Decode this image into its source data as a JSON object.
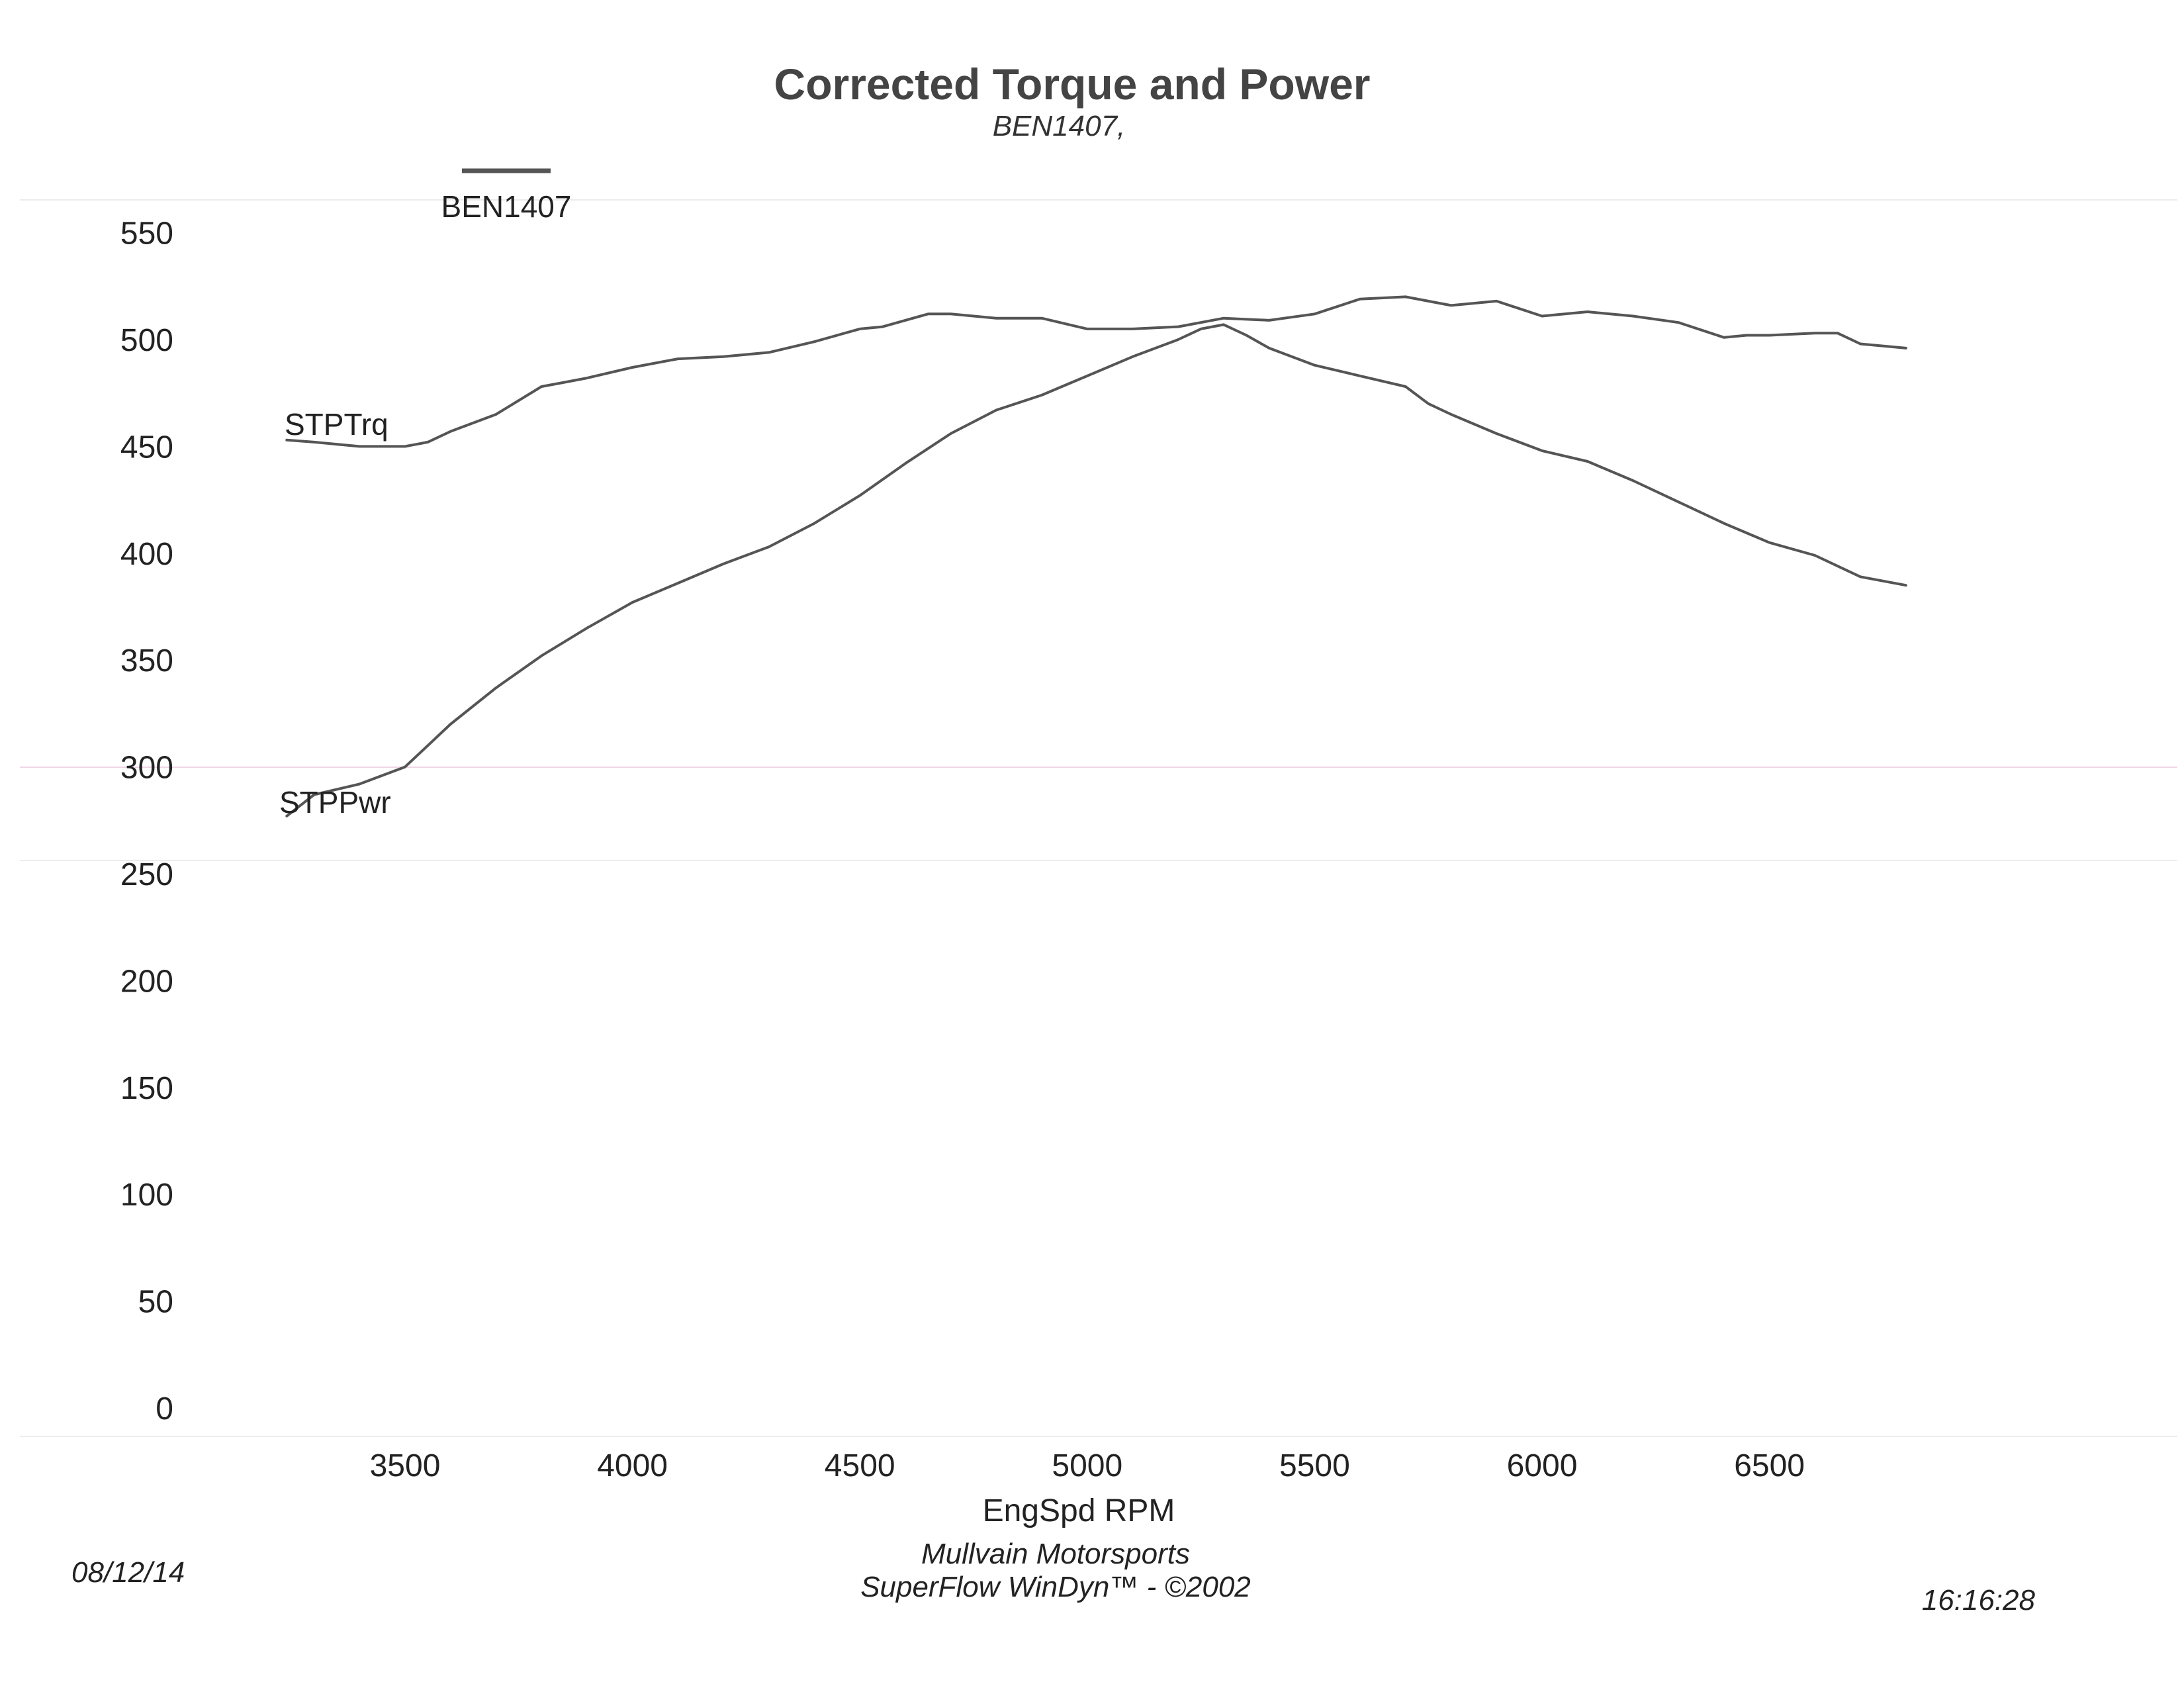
{
  "chart_data": {
    "type": "line",
    "title": "Corrected Torque and Power",
    "subtitle": "BEN1407,",
    "legend": {
      "entries": [
        "BEN1407"
      ],
      "position": "top-left"
    },
    "xlabel": "EngSpd  RPM",
    "ylabel": "",
    "xlim": [
      3200,
      7000
    ],
    "ylim": [
      0,
      550
    ],
    "xticks": [
      3500,
      4000,
      4500,
      5000,
      5500,
      6000,
      6500
    ],
    "yticks": [
      550,
      500,
      450,
      400,
      350,
      300,
      250,
      200,
      150,
      100,
      50,
      0
    ],
    "grid": false,
    "series": [
      {
        "name": "STPTrq",
        "x": [
          3240,
          3300,
          3400,
          3500,
          3550,
          3600,
          3700,
          3800,
          3850,
          3900,
          4000,
          4100,
          4200,
          4300,
          4400,
          4500,
          4550,
          4600,
          4650,
          4700,
          4750,
          4800,
          4900,
          5000,
          5100,
          5200,
          5300,
          5400,
          5500,
          5600,
          5700,
          5750,
          5800,
          5850,
          5900,
          6000,
          6100,
          6200,
          6300,
          6400,
          6450,
          6500,
          6600,
          6650,
          6700,
          6800
        ],
        "y": [
          453,
          452,
          450,
          450,
          452,
          457,
          465,
          478,
          480,
          482,
          487,
          491,
          492,
          494,
          499,
          505,
          506,
          509,
          512,
          512,
          511,
          510,
          510,
          505,
          505,
          506,
          510,
          509,
          512,
          519,
          520,
          518,
          516,
          517,
          518,
          511,
          513,
          511,
          508,
          501,
          502,
          502,
          503,
          503,
          498,
          496
        ]
      },
      {
        "name": "STPPwr",
        "x": [
          3240,
          3300,
          3400,
          3500,
          3550,
          3600,
          3700,
          3800,
          3900,
          4000,
          4100,
          4200,
          4300,
          4400,
          4500,
          4600,
          4700,
          4800,
          4900,
          5000,
          5100,
          5200,
          5250,
          5300,
          5350,
          5400,
          5500,
          5600,
          5700,
          5750,
          5800,
          5900,
          6000,
          6100,
          6200,
          6300,
          6400,
          6500,
          6600,
          6650,
          6700,
          6800
        ],
        "y": [
          277,
          287,
          292,
          300,
          310,
          320,
          337,
          352,
          365,
          377,
          386,
          395,
          403,
          414,
          427,
          442,
          456,
          467,
          474,
          483,
          492,
          500,
          505,
          507,
          502,
          496,
          488,
          483,
          478,
          470,
          465,
          456,
          448,
          443,
          434,
          424,
          414,
          405,
          399,
          394,
          389,
          385
        ]
      }
    ]
  },
  "footer": {
    "date": "08/12/14",
    "company": "Mullvain Motorsports",
    "software": "SuperFlow WinDyn™ - ©2002",
    "time": "16:16:28"
  }
}
